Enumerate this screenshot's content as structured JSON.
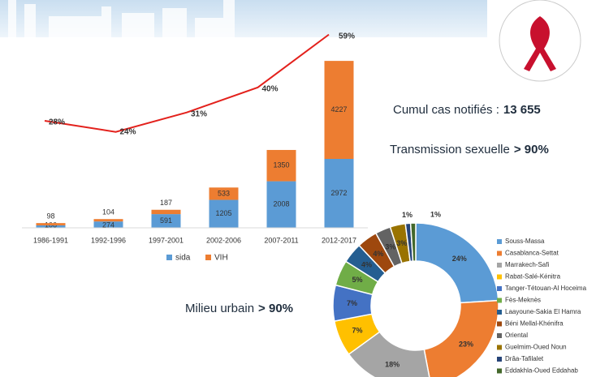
{
  "chart_data": [
    {
      "type": "bar",
      "stacked": true,
      "categories": [
        "1986-1991",
        "1992-1996",
        "1997-2001",
        "2002-2006",
        "2007-2011",
        "2012-2017"
      ],
      "series": [
        {
          "name": "sida",
          "color": "#5b9bd5",
          "values": [
            106,
            274,
            591,
            1205,
            2008,
            2972
          ]
        },
        {
          "name": "VIH",
          "color": "#ed7d31",
          "values": [
            98,
            104,
            187,
            533,
            1350,
            4227
          ]
        }
      ]
    },
    {
      "type": "line",
      "color": "#e3211c",
      "categories": [
        null,
        null,
        null,
        null,
        null
      ],
      "values": [
        28,
        24,
        31,
        40,
        59
      ],
      "value_labels": [
        "28%",
        "24%",
        "31%",
        "40%",
        "59%"
      ]
    },
    {
      "type": "pie",
      "donut": true,
      "categories": [
        "Souss-Massa",
        "Casablanca-Settat",
        "Marrakech-Safi",
        "Rabat-Salé-Kénitra",
        "Tanger-Tétouan-Al Hoceima",
        "Fès-Meknès",
        "Laayoune-Sakia El Hamra",
        "Béni Mellal-Khénifra",
        "Oriental",
        "Guelmim-Oued Noun",
        "Drâa-Tafilalet",
        "Eddakhla-Oued Eddahab"
      ],
      "values": [
        24,
        23,
        18,
        7,
        7,
        5,
        4,
        4,
        3,
        3,
        1,
        1
      ],
      "value_labels": [
        "24%",
        "23%",
        "18%",
        "7%",
        "7%",
        "5%",
        "4%",
        "4%",
        "3%",
        "3%",
        "1%",
        "1%"
      ],
      "colors": [
        "#5b9bd5",
        "#ed7d31",
        "#a5a5a5",
        "#ffc000",
        "#4472c4",
        "#70ad47",
        "#255e91",
        "#9e480e",
        "#636363",
        "#997300",
        "#264478",
        "#43682b"
      ]
    }
  ],
  "text_blocks": [
    {
      "label": "Cumul cas notifiés :",
      "value": "13 655"
    },
    {
      "label": "Transmission sexuelle",
      "value": "> 90%"
    },
    {
      "label": "Milieu urbain",
      "value": "> 90%"
    }
  ]
}
